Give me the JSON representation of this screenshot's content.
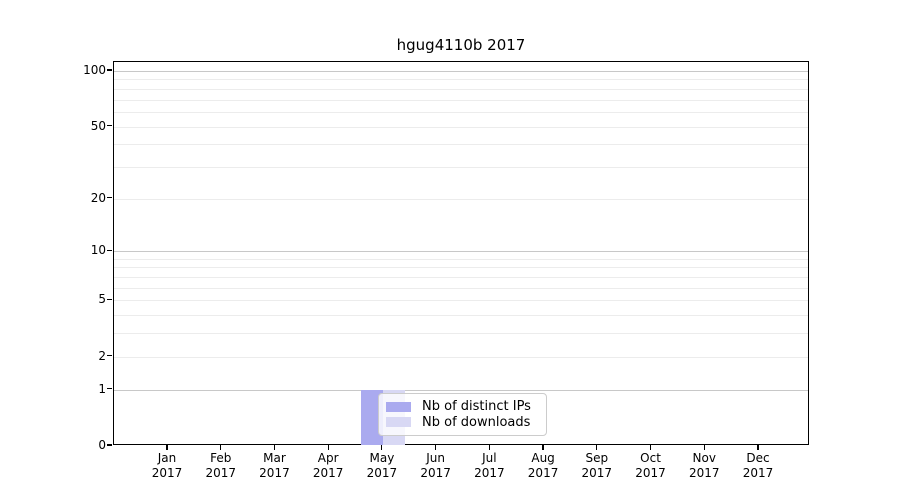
{
  "chart_data": {
    "type": "bar",
    "title": "hgug4110b 2017",
    "categories": [
      "Jan",
      "Feb",
      "Mar",
      "Apr",
      "May",
      "Jun",
      "Jul",
      "Aug",
      "Sep",
      "Oct",
      "Nov",
      "Dec"
    ],
    "category_year_label": "2017",
    "series": [
      {
        "name": "Nb of distinct IPs",
        "color": "#aaaaef",
        "values": [
          0,
          0,
          0,
          0,
          1,
          0,
          0,
          0,
          0,
          0,
          0,
          0
        ]
      },
      {
        "name": "Nb of downloads",
        "color": "#d8d8f4",
        "values": [
          0,
          0,
          0,
          0,
          1,
          0,
          0,
          0,
          0,
          0,
          0,
          0
        ]
      }
    ],
    "y_axis": {
      "scale": "log1p",
      "tick_values": [
        0,
        1,
        2,
        5,
        10,
        20,
        50,
        100
      ],
      "major_gridlines": [
        1,
        10,
        100
      ],
      "minor_gridlines": [
        2,
        3,
        4,
        5,
        6,
        7,
        8,
        9,
        20,
        30,
        40,
        50,
        60,
        70,
        80,
        90
      ],
      "ylim": [
        0,
        112
      ]
    },
    "x_axis": {
      "year": "2017"
    },
    "legend": {
      "position": "lower-center-inside"
    },
    "grid": true,
    "colors": {
      "grid_minor": "#ececec",
      "grid_major": "#c8c8c8",
      "spine": "#000000"
    }
  }
}
